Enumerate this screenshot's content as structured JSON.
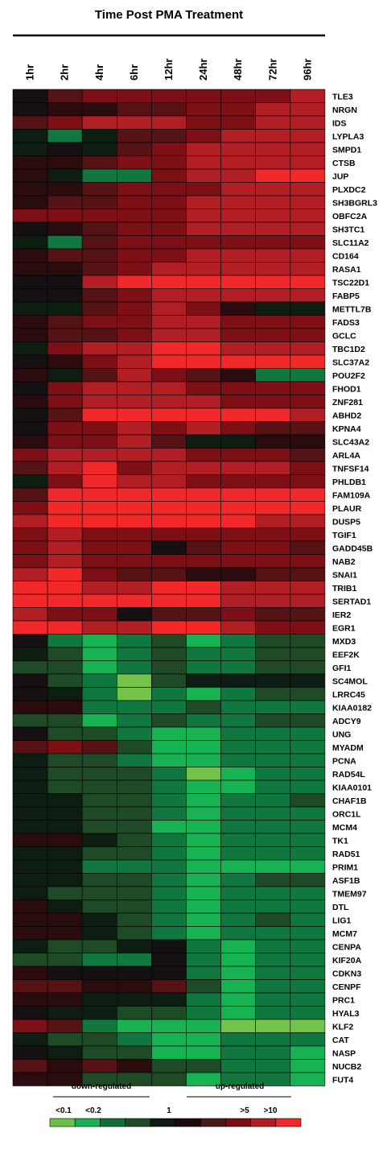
{
  "chart_data": {
    "type": "heatmap",
    "title": "Time Post PMA Treatment",
    "columns": [
      "1hr",
      "2hr",
      "4hr",
      "6hr",
      "12hr",
      "24hr",
      "48hr",
      "72hr",
      "96hr"
    ],
    "rows": [
      "TLE3",
      "NRGN",
      "IDS",
      "LYPLA3",
      "SMPD1",
      "CTSB",
      "JUP",
      "PLXDC2",
      "SH3BGRL3",
      "OBFC2A",
      "SH3TC1",
      "SLC11A2",
      "CD164",
      "RASA1",
      "TSC22D1",
      "FABP5",
      "METTL7B",
      "FADS3",
      "GCLC",
      "TBC1D2",
      "SLC37A2",
      "POU2F2",
      "FHOD1",
      "ZNF281",
      "ABHD2",
      "KPNA4",
      "SLC43A2",
      "ARL4A",
      "TNFSF14",
      "PHLDB1",
      "FAM109A",
      "PLAUR",
      "DUSP5",
      "TGIF1",
      "GADD45B",
      "NAB2",
      "SNAI1",
      "TRIB1",
      "SERTAD1",
      "IER2",
      "EGR1",
      "MXD3",
      "EEF2K",
      "GFI1",
      "SC4MOL",
      "LRRC45",
      "KIAA0182",
      "ADCY9",
      "UNG",
      "MYADM",
      "PCNA",
      "RAD54L",
      "KIAA0101",
      "CHAF1B",
      "ORC1L",
      "MCM4",
      "TK1",
      "RAD51",
      "PRIM1",
      "ASF1B",
      "TMEM97",
      "DTL",
      "LIG1",
      "MCM7",
      "CENPA",
      "KIF20A",
      "CDKN3",
      "CENPF",
      "PRC1",
      "HYAL3",
      "KLF2",
      "CAT",
      "NASP",
      "NUCB2",
      "FUT4"
    ],
    "scale_note": "level index: -5 = <0.1 (strongest down), 0 = 1 (no change), +5 = >10 (strongest up)",
    "values": [
      [
        0,
        2,
        3,
        3,
        3,
        3,
        3,
        3,
        4
      ],
      [
        0,
        1,
        1,
        2,
        2,
        3,
        3,
        4,
        4
      ],
      [
        2,
        3,
        4,
        4,
        4,
        3,
        3,
        4,
        4
      ],
      [
        -1,
        -3,
        -1,
        2,
        2,
        3,
        4,
        4,
        4
      ],
      [
        -1,
        0,
        -1,
        2,
        3,
        4,
        4,
        4,
        4
      ],
      [
        1,
        1,
        2,
        3,
        3,
        4,
        4,
        4,
        4
      ],
      [
        1,
        -1,
        -3,
        -3,
        3,
        4,
        4,
        5,
        5
      ],
      [
        1,
        1,
        2,
        3,
        3,
        3,
        4,
        4,
        4
      ],
      [
        1,
        2,
        2,
        3,
        3,
        4,
        4,
        4,
        4
      ],
      [
        3,
        3,
        3,
        3,
        3,
        4,
        4,
        4,
        4
      ],
      [
        0,
        1,
        2,
        3,
        3,
        4,
        4,
        4,
        4
      ],
      [
        -1,
        -3,
        2,
        3,
        3,
        3,
        3,
        3,
        3
      ],
      [
        1,
        2,
        2,
        3,
        3,
        4,
        4,
        4,
        4
      ],
      [
        1,
        1,
        2,
        3,
        4,
        4,
        4,
        4,
        4
      ],
      [
        0,
        0,
        4,
        5,
        5,
        5,
        5,
        5,
        5
      ],
      [
        0,
        0,
        2,
        3,
        4,
        4,
        4,
        4,
        4
      ],
      [
        -1,
        -1,
        2,
        3,
        4,
        3,
        1,
        -1,
        -1
      ],
      [
        1,
        2,
        3,
        3,
        4,
        4,
        3,
        3,
        3
      ],
      [
        1,
        2,
        2,
        3,
        4,
        4,
        3,
        3,
        3
      ],
      [
        -1,
        3,
        4,
        4,
        5,
        5,
        4,
        4,
        4
      ],
      [
        0,
        1,
        3,
        4,
        5,
        5,
        5,
        5,
        5
      ],
      [
        1,
        -1,
        2,
        4,
        3,
        2,
        1,
        -3,
        -3
      ],
      [
        0,
        3,
        4,
        4,
        4,
        3,
        3,
        3,
        3
      ],
      [
        1,
        3,
        4,
        4,
        4,
        4,
        3,
        3,
        3
      ],
      [
        0,
        2,
        5,
        5,
        5,
        5,
        5,
        5,
        4
      ],
      [
        0,
        3,
        3,
        4,
        3,
        4,
        3,
        2,
        2
      ],
      [
        1,
        3,
        3,
        4,
        2,
        -1,
        -1,
        1,
        1
      ],
      [
        3,
        4,
        4,
        4,
        4,
        3,
        3,
        3,
        2
      ],
      [
        2,
        4,
        5,
        3,
        4,
        4,
        4,
        4,
        3
      ],
      [
        -1,
        3,
        5,
        4,
        4,
        3,
        3,
        3,
        3
      ],
      [
        2,
        5,
        5,
        5,
        5,
        5,
        5,
        5,
        5
      ],
      [
        3,
        5,
        5,
        5,
        5,
        5,
        5,
        5,
        5
      ],
      [
        4,
        5,
        5,
        5,
        5,
        5,
        5,
        4,
        4
      ],
      [
        3,
        4,
        3,
        3,
        3,
        3,
        3,
        3,
        3
      ],
      [
        3,
        4,
        3,
        3,
        0,
        2,
        3,
        3,
        2
      ],
      [
        3,
        4,
        3,
        3,
        3,
        3,
        3,
        3,
        3
      ],
      [
        4,
        5,
        3,
        2,
        2,
        1,
        1,
        2,
        2
      ],
      [
        5,
        5,
        4,
        4,
        5,
        5,
        4,
        4,
        4
      ],
      [
        5,
        5,
        5,
        5,
        5,
        5,
        4,
        4,
        4
      ],
      [
        4,
        3,
        3,
        0,
        2,
        2,
        3,
        2,
        2
      ],
      [
        5,
        5,
        4,
        4,
        5,
        5,
        4,
        3,
        3
      ],
      [
        0,
        -3,
        -4,
        -3,
        -2,
        -4,
        -3,
        -2,
        -2
      ],
      [
        -1,
        -2,
        -4,
        -3,
        -2,
        -3,
        -3,
        -2,
        -2
      ],
      [
        -2,
        -2,
        -4,
        -3,
        -2,
        -3,
        -3,
        -2,
        -2
      ],
      [
        0,
        -2,
        -3,
        -5,
        -2,
        -1,
        -1,
        -1,
        -1
      ],
      [
        0,
        -1,
        -3,
        -5,
        -3,
        -4,
        -3,
        -2,
        -2
      ],
      [
        1,
        1,
        -3,
        -3,
        -3,
        -2,
        -3,
        -3,
        -3
      ],
      [
        -2,
        -2,
        -4,
        -3,
        -2,
        -3,
        -3,
        -2,
        -2
      ],
      [
        0,
        -2,
        -2,
        -3,
        -4,
        -4,
        -3,
        -3,
        -3
      ],
      [
        2,
        3,
        2,
        -2,
        -4,
        -4,
        -3,
        -3,
        -3
      ],
      [
        -1,
        -2,
        -2,
        -3,
        -4,
        -4,
        -3,
        -3,
        -3
      ],
      [
        -1,
        -2,
        -2,
        -2,
        -3,
        -5,
        -4,
        -3,
        -3
      ],
      [
        -1,
        -2,
        -2,
        -2,
        -3,
        -4,
        -4,
        -3,
        -3
      ],
      [
        -1,
        -1,
        -2,
        -2,
        -3,
        -4,
        -3,
        -3,
        -2
      ],
      [
        -1,
        -1,
        -2,
        -2,
        -3,
        -4,
        -3,
        -3,
        -3
      ],
      [
        -1,
        -1,
        -2,
        -2,
        -4,
        -4,
        -3,
        -3,
        -3
      ],
      [
        1,
        1,
        -1,
        -2,
        -3,
        -4,
        -3,
        -3,
        -3
      ],
      [
        -1,
        -1,
        -2,
        -2,
        -3,
        -4,
        -3,
        -3,
        -3
      ],
      [
        -1,
        -1,
        -3,
        -3,
        -3,
        -4,
        -4,
        -4,
        -4
      ],
      [
        -1,
        -1,
        -2,
        -2,
        -3,
        -4,
        -3,
        -2,
        -2
      ],
      [
        -1,
        -2,
        -2,
        -2,
        -3,
        -4,
        -3,
        -3,
        -3
      ],
      [
        1,
        -1,
        -2,
        -2,
        -3,
        -4,
        -3,
        -3,
        -3
      ],
      [
        1,
        1,
        -1,
        -2,
        -3,
        -4,
        -3,
        -2,
        -3
      ],
      [
        1,
        1,
        -1,
        -2,
        -3,
        -4,
        -3,
        -3,
        -3
      ],
      [
        -1,
        -2,
        -2,
        -1,
        0,
        -3,
        -4,
        -3,
        -3
      ],
      [
        -2,
        -2,
        -3,
        -3,
        0,
        -3,
        -4,
        -3,
        -3
      ],
      [
        1,
        0,
        0,
        0,
        0,
        -3,
        -4,
        -3,
        -3
      ],
      [
        2,
        2,
        1,
        1,
        2,
        -2,
        -4,
        -3,
        -3
      ],
      [
        1,
        1,
        -1,
        -1,
        -1,
        -3,
        -4,
        -3,
        -3
      ],
      [
        0,
        -1,
        -1,
        -2,
        -2,
        -3,
        -4,
        -3,
        -3
      ],
      [
        3,
        2,
        -3,
        -4,
        -4,
        -4,
        -5,
        -5,
        -5
      ],
      [
        -1,
        -2,
        -2,
        -3,
        -4,
        -4,
        -3,
        -3,
        -3
      ],
      [
        0,
        -1,
        -2,
        -2,
        -4,
        -4,
        -3,
        -3,
        -4
      ],
      [
        2,
        1,
        2,
        1,
        -2,
        -2,
        -3,
        -3,
        -4
      ],
      [
        1,
        1,
        -2,
        -2,
        -2,
        -4,
        -3,
        -3,
        -4
      ]
    ],
    "legend": {
      "down_label": "down-regulated",
      "up_label": "up-regulated",
      "ticks": [
        "<0.1",
        "<0.2",
        "1",
        ">5",
        ">10"
      ],
      "colors": [
        "#6cc04a",
        "#18b050",
        "#0f6e3a",
        "#1f4a26",
        "#0d1a10",
        "#1a0a0c",
        "#4a1a18",
        "#7a0e14",
        "#b01e22",
        "#f0282a"
      ]
    },
    "palette": {
      "-5": "#74c44c",
      "-4": "#17b352",
      "-3": "#10773f",
      "-2": "#1e4a26",
      "-1": "#0e1d12",
      "0": "#151012",
      "1": "#2a0c0e",
      "2": "#561315",
      "3": "#7c1016",
      "4": "#b11f24",
      "5": "#f2292b"
    }
  }
}
